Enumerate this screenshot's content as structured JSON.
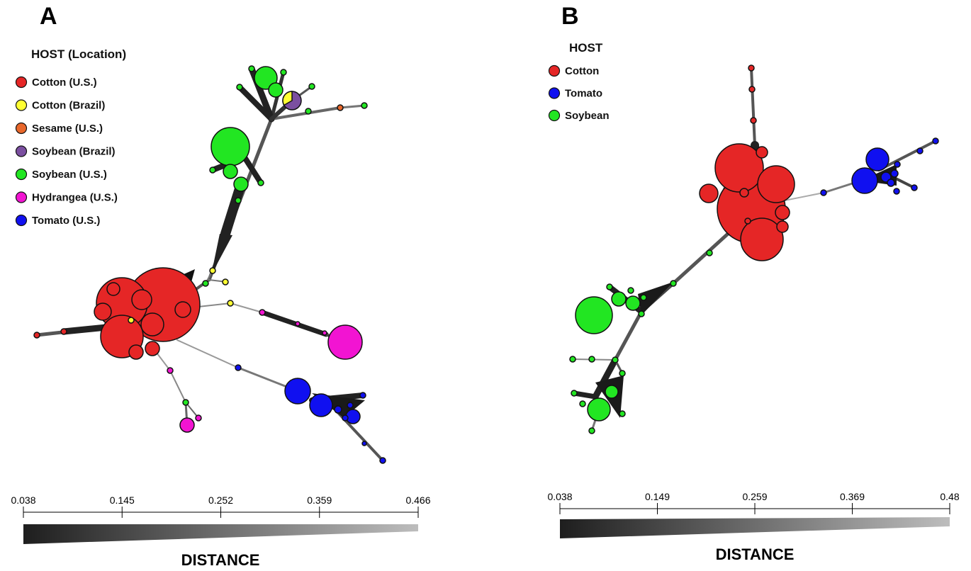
{
  "panels": [
    {
      "letter": "A",
      "legend_title": "HOST (Location)",
      "legend": [
        {
          "label": "Cotton (U.S.)",
          "color": "#e52626"
        },
        {
          "label": "Cotton (Brazil)",
          "color": "#ffff33"
        },
        {
          "label": "Sesame (U.S.)",
          "color": "#e8672b"
        },
        {
          "label": "Soybean (Brazil)",
          "color": "#7b4fa0"
        },
        {
          "label": "Soybean (U.S.)",
          "color": "#22e622"
        },
        {
          "label": "Hydrangea (U.S.)",
          "color": "#f214d2"
        },
        {
          "label": "Tomato (U.S.)",
          "color": "#1010f0"
        }
      ],
      "scale_ticks": [
        "0.038",
        "0.145",
        "0.252",
        "0.359",
        "0.466"
      ],
      "scale_title": "DISTANCE"
    },
    {
      "letter": "B",
      "legend_title": "HOST",
      "legend": [
        {
          "label": "Cotton",
          "color": "#e52626"
        },
        {
          "label": "Tomato",
          "color": "#1010f0"
        },
        {
          "label": "Soybean",
          "color": "#22e622"
        }
      ],
      "scale_ticks": [
        "0.038",
        "0.149",
        "0.259",
        "0.369",
        "0.48"
      ],
      "scale_title": "DISTANCE"
    }
  ]
}
